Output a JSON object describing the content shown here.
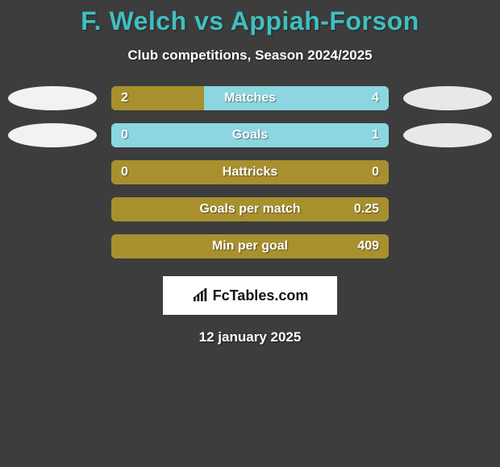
{
  "title": "F. Welch vs Appiah-Forson",
  "subtitle": "Club competitions, Season 2024/2025",
  "date": "12 january 2025",
  "logo_text": "FcTables.com",
  "colors": {
    "background": "#3d3d3d",
    "title": "#3fbfbf",
    "text": "#ffffff",
    "player1": "#a8902e",
    "player2": "#8bd6e0",
    "ellipse1": "#f2f2f2",
    "ellipse2": "#e8e8e8",
    "logo_bg": "#ffffff"
  },
  "ellipse_rows": [
    0,
    1
  ],
  "stats": [
    {
      "label": "Matches",
      "left_val": "2",
      "right_val": "4",
      "left_pct": 33.3,
      "right_pct": 66.7,
      "show_left_val": true,
      "show_right_val": true
    },
    {
      "label": "Goals",
      "left_val": "0",
      "right_val": "1",
      "left_pct": 0,
      "right_pct": 100,
      "show_left_val": true,
      "show_right_val": true
    },
    {
      "label": "Hattricks",
      "left_val": "0",
      "right_val": "0",
      "left_pct": 100,
      "right_pct": 0,
      "show_left_val": true,
      "show_right_val": true
    },
    {
      "label": "Goals per match",
      "left_val": "",
      "right_val": "0.25",
      "left_pct": 100,
      "right_pct": 0,
      "show_left_val": false,
      "show_right_val": true
    },
    {
      "label": "Min per goal",
      "left_val": "",
      "right_val": "409",
      "left_pct": 100,
      "right_pct": 0,
      "show_left_val": false,
      "show_right_val": true
    }
  ]
}
